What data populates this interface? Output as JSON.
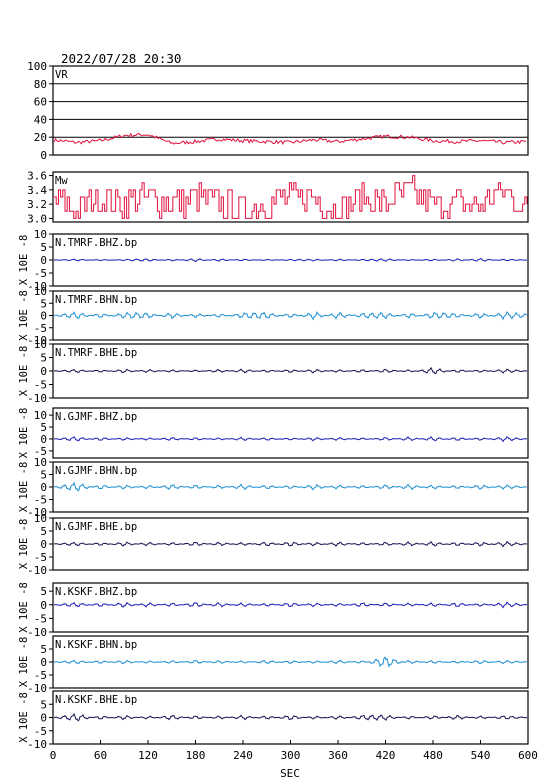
{
  "header": {
    "datetime": "2022/07/28 20:30"
  },
  "x_axis": {
    "label": "SEC",
    "ticks": [
      0,
      60,
      120,
      180,
      240,
      300,
      360,
      420,
      480,
      540,
      600
    ],
    "range": [
      0,
      600
    ]
  },
  "colors": {
    "vr_mw": "#e0103c",
    "bhz": "#1e1eb4",
    "bhn": "#1e8fd2",
    "bhe": "#141450",
    "frame": "#000000"
  },
  "chart_data": [
    {
      "type": "line",
      "panel": "vr",
      "title": "VR",
      "ylim": [
        0,
        100
      ],
      "y_ticks": [
        0,
        20,
        40,
        60,
        80,
        100
      ],
      "grid": true,
      "x": [
        0,
        30,
        60,
        90,
        120,
        150,
        180,
        210,
        240,
        270,
        300,
        330,
        360,
        390,
        420,
        450,
        480,
        510,
        540,
        570,
        600
      ],
      "values": [
        17,
        14,
        16,
        22,
        23,
        13,
        15,
        18,
        16,
        15,
        14,
        17,
        15,
        18,
        21,
        20,
        16,
        15,
        16,
        14,
        15
      ]
    },
    {
      "type": "line",
      "panel": "mw",
      "title": "Mw",
      "ylim": [
        2.95,
        3.65
      ],
      "y_ticks": [
        "3.6",
        "3.4",
        "3.2",
        "3.0"
      ],
      "x": [
        0,
        30,
        60,
        90,
        120,
        150,
        180,
        210,
        240,
        270,
        300,
        330,
        360,
        390,
        420,
        450,
        480,
        510,
        540,
        570,
        600
      ],
      "values": [
        3.3,
        3.1,
        3.3,
        3.2,
        3.3,
        3.2,
        3.3,
        3.2,
        3.1,
        3.2,
        3.3,
        3.3,
        3.1,
        3.3,
        3.2,
        3.4,
        3.2,
        3.2,
        3.2,
        3.4,
        3.1
      ]
    },
    {
      "type": "line",
      "panel": "waveform",
      "title": "N.TMRF.BHZ.bp",
      "component": "bhz",
      "ylim": [
        -10,
        10
      ],
      "y_ticks": [
        "10",
        "5",
        "0",
        "-5",
        "-10"
      ],
      "x": [
        0,
        30,
        60,
        90,
        120,
        150,
        180,
        210,
        240,
        270,
        300,
        330,
        360,
        390,
        420,
        450,
        480,
        510,
        540,
        570,
        600
      ],
      "values": [
        0,
        0.3,
        -0.2,
        0.2,
        0.4,
        -0.3,
        0.5,
        -0.4,
        0.3,
        -0.2,
        0.2,
        0.3,
        -0.3,
        0.2,
        0.4,
        -0.2,
        0.3,
        -0.4,
        0.5,
        -0.3,
        0
      ]
    },
    {
      "type": "line",
      "panel": "waveform",
      "title": "N.TMRF.BHN.bp",
      "component": "bhn",
      "ylim": [
        -10,
        10
      ],
      "y_ticks": [
        "10",
        "5",
        "0",
        "-5",
        "-10"
      ],
      "x": [
        0,
        30,
        60,
        90,
        120,
        150,
        180,
        210,
        240,
        270,
        300,
        330,
        360,
        390,
        420,
        450,
        480,
        510,
        540,
        570,
        600
      ],
      "values": [
        0,
        1.2,
        -0.8,
        1.0,
        0.9,
        -1.0,
        0.7,
        -0.6,
        0.9,
        1.1,
        -0.8,
        1.3,
        -1.2,
        0.8,
        1.0,
        -0.9,
        1.1,
        0.7,
        -1.0,
        1.2,
        0.5
      ]
    },
    {
      "type": "line",
      "panel": "waveform",
      "title": "N.TMRF.BHE.bp",
      "component": "bhe",
      "ylim": [
        -10,
        10
      ],
      "y_ticks": [
        "10",
        "5",
        "0",
        "-5",
        "-10"
      ],
      "x": [
        0,
        30,
        60,
        90,
        120,
        150,
        180,
        210,
        240,
        270,
        300,
        330,
        360,
        390,
        420,
        450,
        480,
        510,
        540,
        570,
        600
      ],
      "values": [
        0,
        0.5,
        -0.4,
        0.6,
        -0.5,
        0.4,
        -0.3,
        0.5,
        -0.6,
        0.4,
        -0.5,
        0.6,
        -0.4,
        0.5,
        -0.6,
        0.4,
        -1.0,
        0.5,
        -0.4,
        0.6,
        0
      ]
    },
    {
      "type": "line",
      "panel": "waveform",
      "title": "N.GJMF.BHZ.bp",
      "component": "bhz",
      "ylim": [
        -8,
        13
      ],
      "y_ticks": [
        "10",
        "5",
        "0",
        "-5"
      ],
      "x": [
        0,
        30,
        60,
        90,
        120,
        150,
        180,
        210,
        240,
        270,
        300,
        330,
        360,
        390,
        420,
        450,
        480,
        510,
        540,
        570,
        600
      ],
      "values": [
        0,
        0.8,
        -0.6,
        0.5,
        -0.4,
        0.6,
        -0.5,
        0.4,
        -0.6,
        0.5,
        -0.4,
        0.6,
        -0.5,
        0.4,
        -0.6,
        0.7,
        -0.8,
        0.6,
        -0.5,
        0.8,
        0
      ]
    },
    {
      "type": "line",
      "panel": "waveform",
      "title": "N.GJMF.BHN.bp",
      "component": "bhn",
      "ylim": [
        -10,
        10
      ],
      "y_ticks": [
        "10",
        "5",
        "0",
        "-5",
        "-10"
      ],
      "x": [
        0,
        30,
        60,
        90,
        120,
        150,
        180,
        210,
        240,
        270,
        300,
        330,
        360,
        390,
        420,
        450,
        480,
        510,
        540,
        570,
        600
      ],
      "values": [
        0,
        1.5,
        -0.8,
        0.7,
        -0.6,
        0.9,
        -0.7,
        0.6,
        -0.9,
        0.7,
        -0.6,
        0.9,
        -0.7,
        0.6,
        -0.8,
        0.9,
        -0.7,
        0.6,
        -0.8,
        0.7,
        0
      ]
    },
    {
      "type": "line",
      "panel": "waveform",
      "title": "N.GJMF.BHE.bp",
      "component": "bhe",
      "ylim": [
        -10,
        10
      ],
      "y_ticks": [
        "10",
        "5",
        "0",
        "-5",
        "-10"
      ],
      "x": [
        0,
        30,
        60,
        90,
        120,
        150,
        180,
        210,
        240,
        270,
        300,
        330,
        360,
        390,
        420,
        450,
        480,
        510,
        540,
        570,
        600
      ],
      "values": [
        0,
        0.6,
        -0.5,
        0.7,
        -0.6,
        0.5,
        -0.7,
        0.6,
        -0.5,
        0.7,
        -0.8,
        0.6,
        -0.7,
        0.5,
        -0.6,
        0.7,
        -0.8,
        0.6,
        -0.7,
        0.8,
        0
      ]
    },
    {
      "type": "line",
      "panel": "waveform",
      "title": "N.KSKF.BHZ.bp",
      "component": "bhz",
      "ylim": [
        -10,
        8
      ],
      "y_ticks": [
        "5",
        "0",
        "-5",
        "-10"
      ],
      "x": [
        0,
        30,
        60,
        90,
        120,
        150,
        180,
        210,
        240,
        270,
        300,
        330,
        360,
        390,
        420,
        450,
        480,
        510,
        540,
        570,
        600
      ],
      "values": [
        0,
        0.7,
        -0.6,
        0.8,
        -0.7,
        0.6,
        -0.8,
        0.7,
        -0.6,
        0.5,
        -0.7,
        0.6,
        -0.5,
        0.7,
        -0.6,
        0.5,
        -0.6,
        0.7,
        -0.5,
        0.8,
        0
      ]
    },
    {
      "type": "line",
      "panel": "waveform",
      "title": "N.KSKF.BHN.bp",
      "component": "bhn",
      "ylim": [
        -10,
        10
      ],
      "y_ticks": [
        "5",
        "0",
        "-5",
        "-10"
      ],
      "x": [
        0,
        30,
        60,
        90,
        120,
        150,
        180,
        210,
        240,
        270,
        300,
        330,
        360,
        390,
        420,
        450,
        480,
        510,
        540,
        570,
        600
      ],
      "values": [
        0,
        0.6,
        -0.5,
        0.6,
        -0.4,
        0.5,
        -0.6,
        0.5,
        -0.4,
        0.6,
        -0.5,
        0.4,
        -0.6,
        0.5,
        -1.8,
        0.6,
        -0.5,
        0.4,
        -0.6,
        0.5,
        0
      ]
    },
    {
      "type": "line",
      "panel": "waveform",
      "title": "N.KSKF.BHE.bp",
      "component": "bhe",
      "ylim": [
        -10,
        10
      ],
      "y_ticks": [
        "5",
        "0",
        "-5",
        "-10"
      ],
      "x": [
        0,
        30,
        60,
        90,
        120,
        150,
        180,
        210,
        240,
        270,
        300,
        330,
        360,
        390,
        420,
        450,
        480,
        510,
        540,
        570,
        600
      ],
      "values": [
        0,
        1.2,
        -0.6,
        0.7,
        -0.5,
        0.8,
        -0.6,
        0.5,
        -0.7,
        0.6,
        -0.8,
        0.5,
        -0.6,
        0.7,
        0.8,
        -0.5,
        0.6,
        -0.7,
        0.5,
        -0.6,
        0
      ]
    }
  ],
  "y_unit_labels": [
    "X 10E -8",
    "X 10E -8",
    "X 10E -8",
    "X 10E -8",
    "X 10E -8",
    "X 10E -8",
    "X 10E -8",
    "X 10E -8",
    "X 10E -8"
  ]
}
